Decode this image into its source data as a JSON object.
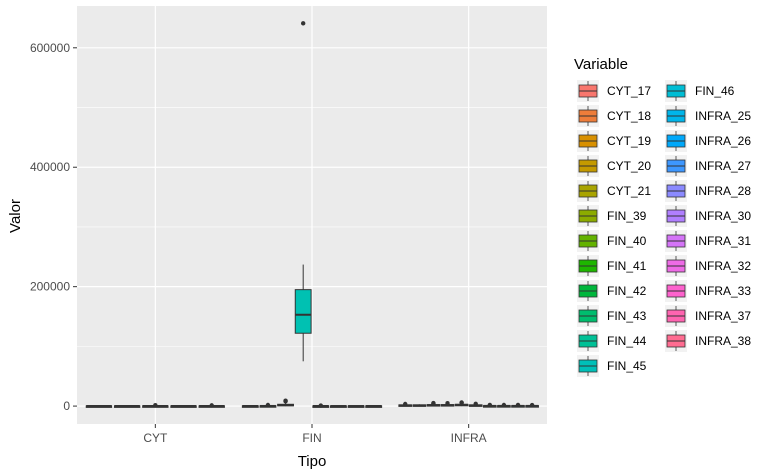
{
  "chart_data": {
    "type": "boxplot",
    "xlabel": "Tipo",
    "ylabel": "Valor",
    "ylim": [
      -30000,
      670000
    ],
    "yticks": [
      0,
      200000,
      400000,
      600000
    ],
    "ytick_labels": [
      "0",
      "200000",
      "400000",
      "600000"
    ],
    "categories": [
      "CYT",
      "FIN",
      "INFRA"
    ],
    "grid": true,
    "legend": {
      "title": "Variable",
      "placement": "right",
      "columns": 2
    },
    "series": [
      {
        "name": "CYT_17",
        "category": "CYT",
        "color": "#F8766D",
        "q1": 0,
        "median": 100,
        "q3": 300,
        "min": 0,
        "max": 500,
        "outliers": []
      },
      {
        "name": "CYT_18",
        "category": "CYT",
        "color": "#E7851E",
        "q1": 0,
        "median": 100,
        "q3": 300,
        "min": 0,
        "max": 500,
        "outliers": []
      },
      {
        "name": "CYT_19",
        "category": "CYT",
        "color": "#D09400",
        "q1": 0,
        "median": 100,
        "q3": 400,
        "min": 0,
        "max": 1000,
        "outliers": [
          1500
        ]
      },
      {
        "name": "CYT_20",
        "category": "CYT",
        "color": "#B2A100",
        "q1": 0,
        "median": 100,
        "q3": 300,
        "min": 0,
        "max": 500,
        "outliers": []
      },
      {
        "name": "CYT_21",
        "category": "CYT",
        "color": "#89AC00",
        "q1": 0,
        "median": 100,
        "q3": 400,
        "min": 0,
        "max": 800,
        "outliers": [
          1200
        ]
      },
      {
        "name": "FIN_39",
        "category": "FIN",
        "color": "#45B500",
        "q1": 0,
        "median": 100,
        "q3": 400,
        "min": 0,
        "max": 800,
        "outliers": []
      },
      {
        "name": "FIN_40",
        "category": "FIN",
        "color": "#00BC51",
        "q1": 0,
        "median": 200,
        "q3": 600,
        "min": 0,
        "max": 1200,
        "outliers": [
          1800
        ]
      },
      {
        "name": "FIN_41",
        "category": "FIN",
        "color": "#00C087",
        "q1": 500,
        "median": 1500,
        "q3": 3000,
        "min": 0,
        "max": 5000,
        "outliers": [
          8000,
          9000
        ]
      },
      {
        "name": "FIN_42",
        "category": "FIN",
        "color": "#00C1B2",
        "q1": 122000,
        "median": 153000,
        "q3": 195000,
        "min": 75000,
        "max": 237000,
        "outliers": [
          641000
        ]
      },
      {
        "name": "FIN_43",
        "category": "FIN",
        "color": "#00BCD6",
        "q1": 0,
        "median": 100,
        "q3": 300,
        "min": 0,
        "max": 500,
        "outliers": [
          900
        ]
      },
      {
        "name": "FIN_44",
        "category": "FIN",
        "color": "#00B3F2",
        "q1": 0,
        "median": 100,
        "q3": 300,
        "min": 0,
        "max": 500,
        "outliers": []
      },
      {
        "name": "FIN_45",
        "category": "FIN",
        "color": "#29A3FF",
        "q1": 0,
        "median": 100,
        "q3": 300,
        "min": 0,
        "max": 500,
        "outliers": []
      },
      {
        "name": "FIN_46",
        "category": "FIN",
        "color": "#9C8DFF",
        "q1": 0,
        "median": 100,
        "q3": 300,
        "min": 0,
        "max": 500,
        "outliers": []
      },
      {
        "name": "INFRA_25",
        "category": "INFRA",
        "color": "#D277FF",
        "q1": 500,
        "median": 1200,
        "q3": 2000,
        "min": 0,
        "max": 3000,
        "outliers": [
          3500
        ]
      },
      {
        "name": "INFRA_26",
        "category": "INFRA",
        "color": "#F166E8",
        "q1": 500,
        "median": 1200,
        "q3": 2000,
        "min": 0,
        "max": 3000,
        "outliers": []
      },
      {
        "name": "INFRA_27",
        "category": "INFRA",
        "color": "#FF61C7",
        "q1": 800,
        "median": 1500,
        "q3": 2500,
        "min": 0,
        "max": 3500,
        "outliers": [
          4500,
          5000
        ]
      },
      {
        "name": "INFRA_28",
        "category": "INFRA",
        "color": "#FF689E",
        "q1": 800,
        "median": 1500,
        "q3": 2500,
        "min": 0,
        "max": 3500,
        "outliers": [
          4800
        ]
      },
      {
        "name": "INFRA_30",
        "category": "INFRA",
        "color": "#F8766D",
        "q1": 1000,
        "median": 2000,
        "q3": 3000,
        "min": 0,
        "max": 4000,
        "outliers": [
          5500,
          6000
        ]
      },
      {
        "name": "INFRA_31",
        "category": "INFRA",
        "color": "#E7851E",
        "q1": 500,
        "median": 1200,
        "q3": 2000,
        "min": 0,
        "max": 3000,
        "outliers": [
          3800
        ]
      },
      {
        "name": "INFRA_32",
        "category": "INFRA",
        "color": "#B2A100",
        "q1": 0,
        "median": 300,
        "q3": 700,
        "min": 0,
        "max": 1200,
        "outliers": [
          2000
        ]
      },
      {
        "name": "INFRA_33",
        "category": "INFRA",
        "color": "#45B500",
        "q1": 0,
        "median": 300,
        "q3": 700,
        "min": 0,
        "max": 1200,
        "outliers": [
          1800
        ]
      },
      {
        "name": "INFRA_37",
        "category": "INFRA",
        "color": "#00C1B2",
        "q1": 0,
        "median": 300,
        "q3": 700,
        "min": 0,
        "max": 1200,
        "outliers": [
          1900
        ]
      },
      {
        "name": "INFRA_38",
        "category": "INFRA",
        "color": "#29A3FF",
        "q1": 0,
        "median": 300,
        "q3": 700,
        "min": 0,
        "max": 1200,
        "outliers": [
          1700
        ]
      }
    ],
    "legend_items": [
      {
        "name": "CYT_17",
        "color": "#F8766D"
      },
      {
        "name": "CYT_18",
        "color": "#EE7D3A"
      },
      {
        "name": "CYT_19",
        "color": "#D89000"
      },
      {
        "name": "CYT_20",
        "color": "#C49A00"
      },
      {
        "name": "CYT_21",
        "color": "#A9A400"
      },
      {
        "name": "FIN_39",
        "color": "#8CAB00"
      },
      {
        "name": "FIN_40",
        "color": "#63B200"
      },
      {
        "name": "FIN_41",
        "color": "#1EB600"
      },
      {
        "name": "FIN_42",
        "color": "#00B63C"
      },
      {
        "name": "FIN_43",
        "color": "#00BD6E"
      },
      {
        "name": "FIN_44",
        "color": "#00C096"
      },
      {
        "name": "FIN_45",
        "color": "#00C0B8"
      },
      {
        "name": "FIN_46",
        "color": "#00BDD4"
      },
      {
        "name": "INFRA_25",
        "color": "#00B5EA"
      },
      {
        "name": "INFRA_26",
        "color": "#00A8FA"
      },
      {
        "name": "INFRA_27",
        "color": "#3D97FF"
      },
      {
        "name": "INFRA_28",
        "color": "#8B8AFF"
      },
      {
        "name": "INFRA_30",
        "color": "#B07FFF"
      },
      {
        "name": "INFRA_31",
        "color": "#D474F7"
      },
      {
        "name": "INFRA_32",
        "color": "#EE6BE6"
      },
      {
        "name": "INFRA_33",
        "color": "#FD62CD"
      },
      {
        "name": "INFRA_37",
        "color": "#FF64B0"
      },
      {
        "name": "INFRA_38",
        "color": "#FF6C91"
      }
    ]
  }
}
